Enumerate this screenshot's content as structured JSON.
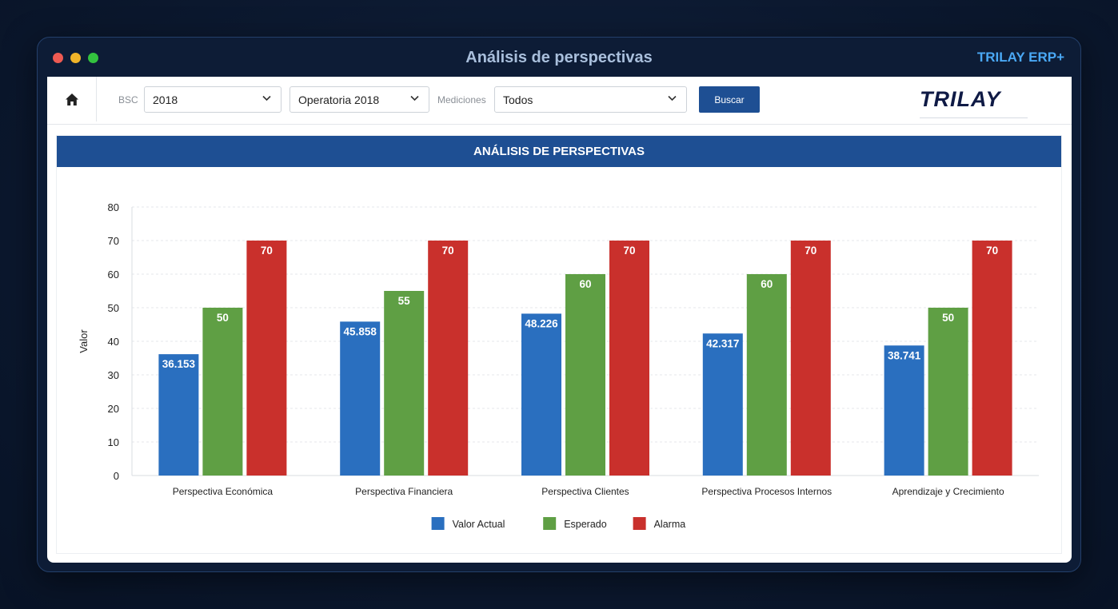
{
  "window": {
    "title": "Análisis de perspectivas",
    "brand": "TRILAY ERP+"
  },
  "toolbar": {
    "bsc_label": "BSC",
    "bsc_value": "2018",
    "operatoria_value": "Operatoria 2018",
    "mediciones_label": "Mediciones",
    "mediciones_value": "Todos",
    "search_label": "Buscar",
    "logo": "TRILAY"
  },
  "panel": {
    "title": "ANÁLISIS DE PERSPECTIVAS"
  },
  "chart_data": {
    "type": "bar",
    "title": "ANÁLISIS DE PERSPECTIVAS",
    "ylabel": "Valor",
    "xlabel": "",
    "ylim": [
      0,
      80
    ],
    "yticks": [
      0,
      10,
      20,
      30,
      40,
      50,
      60,
      70,
      80
    ],
    "grid": true,
    "legend_position": "bottom",
    "categories": [
      "Perspectiva Económica",
      "Perspectiva Financiera",
      "Perspectiva Clientes",
      "Perspectiva Procesos Internos",
      "Aprendizaje y Crecimiento"
    ],
    "series": [
      {
        "name": "Valor Actual",
        "color": "#2a6fbf",
        "values": [
          36.153,
          45.858,
          48.226,
          42.317,
          38.741
        ],
        "labels": [
          "36.153",
          "45.858",
          "48.226",
          "42.317",
          "38.741"
        ]
      },
      {
        "name": "Esperado",
        "color": "#5f9f44",
        "values": [
          50,
          55,
          60,
          60,
          50
        ],
        "labels": [
          "50",
          "55",
          "60",
          "60",
          "50"
        ]
      },
      {
        "name": "Alarma",
        "color": "#c9302c",
        "values": [
          70,
          70,
          70,
          70,
          70
        ],
        "labels": [
          "70",
          "70",
          "70",
          "70",
          "70"
        ]
      }
    ]
  }
}
